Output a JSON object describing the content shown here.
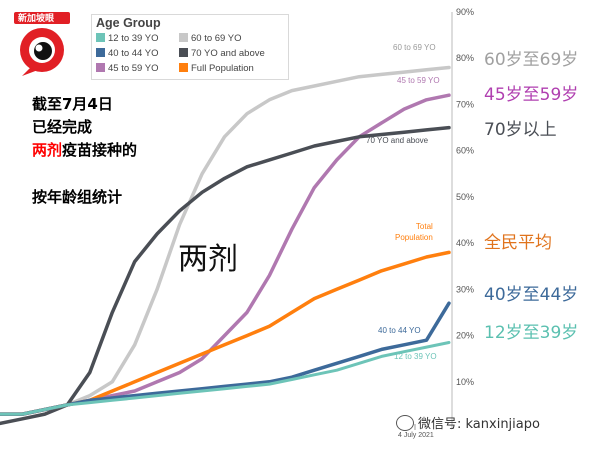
{
  "logo": {
    "text": "新加坡眼"
  },
  "captions": {
    "line1": "截至7月4日",
    "line2": "已经完成",
    "line3_highlight": "两剂",
    "line3_rest": "疫苗接种的",
    "line4": "按年龄组统计"
  },
  "center_label": "两剂",
  "watermark": "微信号: kanxinjiapo",
  "colors": {
    "g12_39": "#6dc4b8",
    "g40_44": "#3d6a9a",
    "g45_59": "#b078b0",
    "g60_69": "#c8c8c8",
    "g70": "#4a4e55",
    "full": "#ff7f0e",
    "highlight": "#ff0000"
  },
  "side_labels": {
    "g60_69": "60岁至69岁",
    "g45_59": "45岁至59岁",
    "g70": "70岁以上",
    "full": "全民平均",
    "g40_44": "40岁至44岁",
    "g12_39": "12岁至39岁"
  },
  "chart_data": {
    "type": "line",
    "title": "",
    "legend_title": "Age Group",
    "xlabel": "",
    "ylabel": "",
    "x_tick_label": "4 July 2021",
    "ylim": [
      0,
      90
    ],
    "y_ticks": [
      "10%",
      "20%",
      "30%",
      "40%",
      "50%",
      "60%",
      "70%",
      "80%",
      "90%"
    ],
    "x": [
      0,
      5,
      10,
      15,
      20,
      25,
      30,
      35,
      40,
      45,
      50,
      55,
      60,
      65,
      70,
      75,
      80,
      85,
      90,
      95,
      100
    ],
    "series": [
      {
        "key": "g60_69",
        "name": "60 to 69 YO",
        "label": "60 to 69 YO",
        "values": [
          3,
          3,
          4,
          5,
          7,
          10,
          18,
          30,
          44,
          55,
          63,
          68,
          71,
          73,
          74,
          75,
          76,
          76.5,
          77,
          77.5,
          78
        ]
      },
      {
        "key": "g45_59",
        "name": "45 to 59 YO",
        "label": "45 to 59 YO",
        "values": [
          3,
          3,
          4,
          5,
          6,
          7,
          8,
          10,
          12,
          15,
          20,
          25,
          33,
          43,
          52,
          58,
          63,
          66,
          69,
          71,
          72
        ]
      },
      {
        "key": "g70",
        "name": "70 YO and above",
        "label": "70 YO and above",
        "values": [
          1,
          2,
          3,
          5,
          12,
          25,
          36,
          42,
          47,
          51,
          54,
          56.5,
          58,
          59.5,
          61,
          62,
          63,
          63.5,
          64,
          64.5,
          65
        ]
      },
      {
        "key": "full",
        "name": "Full Population",
        "label": "Total\nPopulation",
        "values": [
          3,
          3,
          4,
          5,
          6,
          8,
          10,
          12,
          14,
          16,
          18,
          20,
          22,
          25,
          28,
          30,
          32,
          34,
          35.5,
          37,
          38
        ]
      },
      {
        "key": "g40_44",
        "name": "40 to 44 YO",
        "label": "40 to 44 YO",
        "values": [
          3,
          3,
          4,
          5,
          6,
          6.5,
          7,
          7.5,
          8,
          8.5,
          9,
          9.5,
          10,
          11,
          12.5,
          14,
          15.5,
          17,
          18,
          19,
          27
        ]
      },
      {
        "key": "g12_39",
        "name": "12 to 39 YO",
        "label": "12 to 39 YO",
        "values": [
          3,
          3,
          4,
          5,
          5.5,
          6,
          6.5,
          7,
          7.5,
          8,
          8.5,
          9,
          9.5,
          10.5,
          11.5,
          12.5,
          14,
          15.5,
          16.5,
          17.5,
          18.5
        ]
      }
    ]
  }
}
